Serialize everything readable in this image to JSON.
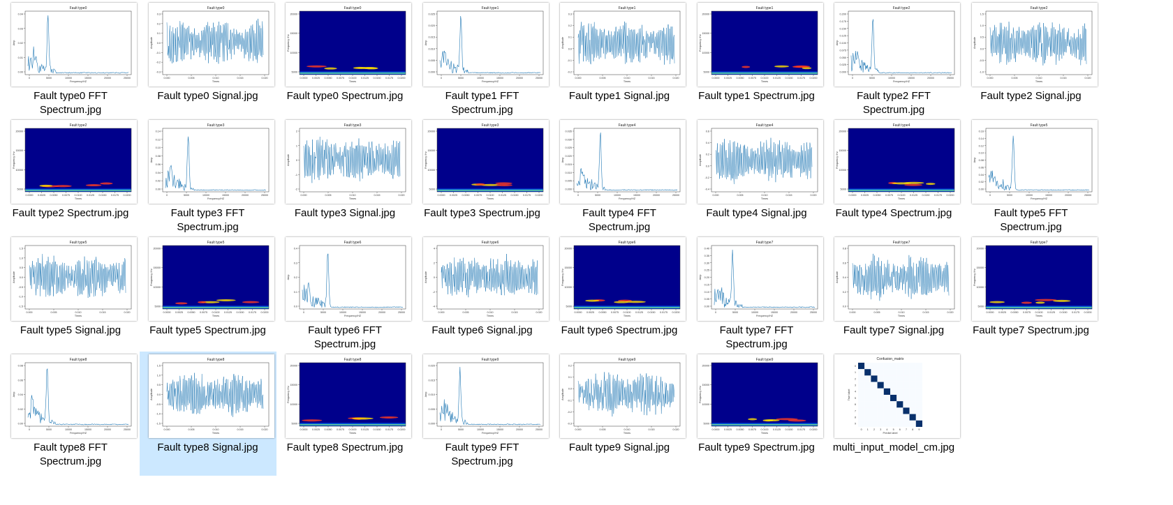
{
  "files": [
    {
      "name": "Fault type0 FFT Spectrum.jpg",
      "kind": "fft",
      "title": "Fault type0",
      "selected": false,
      "y_ticks": [
        "0.04",
        "0.03",
        "0.02",
        "0.01",
        "0.00"
      ],
      "x_ticks": [
        "0",
        "5000",
        "10000",
        "15000",
        "20000",
        "25000"
      ],
      "x_label": "Frequency/HZ",
      "y_label": "Amp"
    },
    {
      "name": "Fault type0 Signal.jpg",
      "kind": "signal",
      "title": "Fault type0",
      "selected": false,
      "y_ticks": [
        "0.3",
        "0.2",
        "0.1",
        "0.0",
        "-0.1",
        "-0.2",
        "-0.3"
      ],
      "x_ticks": [
        "0.000",
        "0.005",
        "0.010",
        "0.015",
        "0.020"
      ],
      "x_label": "Times",
      "y_label": "Amplitude"
    },
    {
      "name": "Fault type0 Spectrum.jpg",
      "kind": "spec",
      "title": "Fault type0",
      "selected": false,
      "y_ticks": [
        "20000",
        "15000",
        "10000",
        "5000"
      ],
      "x_ticks": [
        "0.0000",
        "0.0025",
        "0.0050",
        "0.0075",
        "0.0100",
        "0.0125",
        "0.0150",
        "0.0175",
        "0.0200"
      ],
      "x_label": "Times",
      "y_label": "Frequency /Hz"
    },
    {
      "name": "Fault type1 FFT Spectrum.jpg",
      "kind": "fft",
      "title": "Fault type1",
      "selected": false,
      "y_ticks": [
        "0.025",
        "0.020",
        "0.015",
        "0.010",
        "0.005",
        "0.000"
      ],
      "x_ticks": [
        "0",
        "5000",
        "10000",
        "15000",
        "20000",
        "25000"
      ],
      "x_label": "Frequency/HZ",
      "y_label": "Amp"
    },
    {
      "name": "Fault type1 Signal.jpg",
      "kind": "signal",
      "title": "Fault type1",
      "selected": false,
      "y_ticks": [
        "0.3",
        "0.2",
        "0.1",
        "0.0",
        "-0.1",
        "-0.2"
      ],
      "x_ticks": [
        "0.000",
        "0.005",
        "0.010",
        "0.015",
        "0.020"
      ],
      "x_label": "Times",
      "y_label": "Amplitude"
    },
    {
      "name": "Fault type1 Spectrum.jpg",
      "kind": "spec",
      "title": "Fault type1",
      "selected": false,
      "y_ticks": [
        "20000",
        "15000",
        "10000",
        "5000"
      ],
      "x_ticks": [
        "0.0000",
        "0.0025",
        "0.0050",
        "0.0075",
        "0.0100",
        "0.0125",
        "0.0150",
        "0.0175",
        "0.0200"
      ],
      "x_label": "Times",
      "y_label": "Frequency /Hz"
    },
    {
      "name": "Fault type2 FFT Spectrum.jpg",
      "kind": "fft",
      "title": "Fault type2",
      "selected": false,
      "y_ticks": [
        "0.200",
        "0.175",
        "0.150",
        "0.125",
        "0.100",
        "0.075",
        "0.050",
        "0.025",
        "0.000"
      ],
      "x_ticks": [
        "0",
        "5000",
        "10000",
        "15000",
        "20000",
        "25000"
      ],
      "x_label": "Frequency/HZ",
      "y_label": "Amp"
    },
    {
      "name": "Fault type2 Signal.jpg",
      "kind": "signal",
      "title": "Fault type2",
      "selected": false,
      "y_ticks": [
        "1.5",
        "1.0",
        "0.5",
        "0.0",
        "-0.5",
        "-1.0"
      ],
      "x_ticks": [
        "0.000",
        "0.005",
        "0.010",
        "0.015",
        "0.020"
      ],
      "x_label": "Times",
      "y_label": "Amplitude"
    },
    {
      "name": "Fault type2 Spectrum.jpg",
      "kind": "spec",
      "title": "Fault type2",
      "selected": false,
      "y_ticks": [
        "20000",
        "15000",
        "10000",
        "5000"
      ],
      "x_ticks": [
        "0.0000",
        "0.0025",
        "0.0050",
        "0.0075",
        "0.0100",
        "0.0125",
        "0.0150",
        "0.0175",
        "0.0200"
      ],
      "x_label": "Times",
      "y_label": "Frequency /Hz"
    },
    {
      "name": "Fault type3 FFT Spectrum.jpg",
      "kind": "fft",
      "title": "Fault type3",
      "selected": false,
      "y_ticks": [
        "0.14",
        "0.12",
        "0.10",
        "0.08",
        "0.06",
        "0.04",
        "0.02",
        "0.00"
      ],
      "x_ticks": [
        "0",
        "5000",
        "10000",
        "15000",
        "20000",
        "25000"
      ],
      "x_label": "Frequency/HZ",
      "y_label": "Amp"
    },
    {
      "name": "Fault type3 Signal.jpg",
      "kind": "signal",
      "title": "Fault type3",
      "selected": false,
      "y_ticks": [
        "2",
        "1",
        "0",
        "-1",
        "-2"
      ],
      "x_ticks": [
        "0.000",
        "0.005",
        "0.010",
        "0.015",
        "0.020"
      ],
      "x_label": "Times",
      "y_label": "Amplitude"
    },
    {
      "name": "Fault type3 Spectrum.jpg",
      "kind": "spec",
      "title": "Fault type3",
      "selected": false,
      "y_ticks": [
        "20000",
        "15000",
        "10000",
        "5000"
      ],
      "x_ticks": [
        "0.0000",
        "0.0025",
        "0.0050",
        "0.0075",
        "0.0100",
        "0.0125",
        "0.0150",
        "0.0175",
        "0.0200"
      ],
      "x_label": "Times",
      "y_label": "Frequency /Hz"
    },
    {
      "name": "Fault type4 FFT Spectrum.jpg",
      "kind": "fft",
      "title": "Fault type4",
      "selected": false,
      "y_ticks": [
        "0.035",
        "0.030",
        "0.025",
        "0.020",
        "0.015",
        "0.010",
        "0.005",
        "0.000"
      ],
      "x_ticks": [
        "0",
        "5000",
        "10000",
        "15000",
        "20000",
        "25000"
      ],
      "x_label": "Frequency/HZ",
      "y_label": "Amp"
    },
    {
      "name": "Fault type4 Signal.jpg",
      "kind": "signal",
      "title": "Fault type4",
      "selected": false,
      "y_ticks": [
        "0.6",
        "0.4",
        "0.2",
        "0.0",
        "-0.2",
        "-0.4"
      ],
      "x_ticks": [
        "0.000",
        "0.005",
        "0.010",
        "0.015",
        "0.020"
      ],
      "x_label": "Times",
      "y_label": "Amplitude"
    },
    {
      "name": "Fault type4 Spectrum.jpg",
      "kind": "spec",
      "title": "Fault type4",
      "selected": false,
      "y_ticks": [
        "20000",
        "15000",
        "10000",
        "5000"
      ],
      "x_ticks": [
        "0.0000",
        "0.0025",
        "0.0050",
        "0.0075",
        "0.0100",
        "0.0125",
        "0.0150",
        "0.0175",
        "0.0200"
      ],
      "x_label": "Times",
      "y_label": "Frequency /Hz"
    },
    {
      "name": "Fault type5 FFT Spectrum.jpg",
      "kind": "fft",
      "title": "Fault type5",
      "selected": false,
      "y_ticks": [
        "0.16",
        "0.14",
        "0.12",
        "0.10",
        "0.08",
        "0.06",
        "0.04",
        "0.02",
        "0.00"
      ],
      "x_ticks": [
        "0",
        "5000",
        "10000",
        "15000",
        "20000",
        "25000"
      ],
      "x_label": "Frequency/HZ",
      "y_label": "Amp"
    },
    {
      "name": "Fault type5 Signal.jpg",
      "kind": "signal",
      "title": "Fault type5",
      "selected": false,
      "y_ticks": [
        "1.5",
        "1.0",
        "0.5",
        "0.0",
        "-0.5",
        "-1.0",
        "-1.5"
      ],
      "x_ticks": [
        "0.000",
        "0.005",
        "0.010",
        "0.015",
        "0.020"
      ],
      "x_label": "Times",
      "y_label": "Amplitude"
    },
    {
      "name": "Fault type5 Spectrum.jpg",
      "kind": "spec",
      "title": "Fault type5",
      "selected": false,
      "y_ticks": [
        "20000",
        "15000",
        "10000",
        "5000"
      ],
      "x_ticks": [
        "0.0000",
        "0.0025",
        "0.0050",
        "0.0075",
        "0.0100",
        "0.0125",
        "0.0150",
        "0.0175",
        "0.0200"
      ],
      "x_label": "Times",
      "y_label": "Frequency /Hz"
    },
    {
      "name": "Fault type6 FFT Spectrum.jpg",
      "kind": "fft",
      "title": "Fault type6",
      "selected": false,
      "y_ticks": [
        "0.4",
        "0.3",
        "0.2",
        "0.1",
        "0.0"
      ],
      "x_ticks": [
        "0",
        "5000",
        "10000",
        "15000",
        "20000",
        "25000"
      ],
      "x_label": "Frequency/HZ",
      "y_label": "Amp"
    },
    {
      "name": "Fault type6 Signal.jpg",
      "kind": "signal",
      "title": "Fault type6",
      "selected": false,
      "y_ticks": [
        "4",
        "2",
        "0",
        "-2",
        "-4"
      ],
      "x_ticks": [
        "0.000",
        "0.005",
        "0.010",
        "0.015",
        "0.020"
      ],
      "x_label": "Times",
      "y_label": "Amplitude"
    },
    {
      "name": "Fault type6 Spectrum.jpg",
      "kind": "spec",
      "title": "Fault type6",
      "selected": false,
      "y_ticks": [
        "20000",
        "15000",
        "10000",
        "5000"
      ],
      "x_ticks": [
        "0.0000",
        "0.0025",
        "0.0050",
        "0.0075",
        "0.0100",
        "0.0125",
        "0.0150",
        "0.0175",
        "0.0200"
      ],
      "x_label": "Times",
      "y_label": "Frequency /Hz"
    },
    {
      "name": "Fault type7 FFT Spectrum.jpg",
      "kind": "fft",
      "title": "Fault type7",
      "selected": false,
      "y_ticks": [
        "0.40",
        "0.35",
        "0.30",
        "0.25",
        "0.20",
        "0.15",
        "0.10",
        "0.05",
        "0.00"
      ],
      "x_ticks": [
        "0",
        "5000",
        "10000",
        "15000",
        "20000",
        "25000"
      ],
      "x_label": "Frequency/HZ",
      "y_label": "Amp"
    },
    {
      "name": "Fault type7 Signal.jpg",
      "kind": "signal",
      "title": "Fault type7",
      "selected": false,
      "y_ticks": [
        "0.8",
        "0.6",
        "0.4",
        "0.2",
        "0.0"
      ],
      "x_ticks": [
        "0.000",
        "0.005",
        "0.010",
        "0.015",
        "0.020"
      ],
      "x_label": "Times",
      "y_label": "Amplitude"
    },
    {
      "name": "Fault type7 Spectrum.jpg",
      "kind": "spec",
      "title": "Fault type7",
      "selected": false,
      "y_ticks": [
        "20000",
        "15000",
        "10000",
        "5000"
      ],
      "x_ticks": [
        "0.0000",
        "0.0025",
        "0.0050",
        "0.0075",
        "0.0100",
        "0.0125",
        "0.0150",
        "0.0175",
        "0.0200"
      ],
      "x_label": "Times",
      "y_label": "Frequency /Hz"
    },
    {
      "name": "Fault type8 FFT Spectrum.jpg",
      "kind": "fft",
      "title": "Fault type8",
      "selected": false,
      "y_ticks": [
        "0.08",
        "0.06",
        "0.04",
        "0.02",
        "0.00"
      ],
      "x_ticks": [
        "0",
        "5000",
        "10000",
        "15000",
        "20000",
        "25000"
      ],
      "x_label": "Frequency/HZ",
      "y_label": "Amp"
    },
    {
      "name": "Fault type8 Signal.jpg",
      "kind": "signal",
      "title": "Fault type8",
      "selected": true,
      "y_ticks": [
        "1.5",
        "1.0",
        "0.5",
        "0.0",
        "-0.5",
        "-1.0",
        "-1.5"
      ],
      "x_ticks": [
        "0.000",
        "0.005",
        "0.010",
        "0.015",
        "0.020"
      ],
      "x_label": "Times",
      "y_label": "Amplitude"
    },
    {
      "name": "Fault type8 Spectrum.jpg",
      "kind": "spec",
      "title": "Fault type8",
      "selected": false,
      "y_ticks": [
        "20000",
        "15000",
        "10000",
        "5000"
      ],
      "x_ticks": [
        "0.0000",
        "0.0025",
        "0.0050",
        "0.0075",
        "0.0100",
        "0.0125",
        "0.0150",
        "0.0175",
        "0.0200"
      ],
      "x_label": "Times",
      "y_label": "Frequency /Hz"
    },
    {
      "name": "Fault type9 FFT Spectrum.jpg",
      "kind": "fft",
      "title": "Fault type9",
      "selected": false,
      "y_ticks": [
        "0.020",
        "0.015",
        "0.010",
        "0.005",
        "0.000"
      ],
      "x_ticks": [
        "0",
        "5000",
        "10000",
        "15000",
        "20000",
        "25000"
      ],
      "x_label": "Frequency/HZ",
      "y_label": "Amp"
    },
    {
      "name": "Fault type9 Signal.jpg",
      "kind": "signal",
      "title": "Fault type9",
      "selected": false,
      "y_ticks": [
        "0.2",
        "0.1",
        "0.0",
        "-0.1",
        "-0.2",
        "-0.3"
      ],
      "x_ticks": [
        "0.000",
        "0.005",
        "0.010",
        "0.015",
        "0.020"
      ],
      "x_label": "Times",
      "y_label": "Amplitude"
    },
    {
      "name": "Fault type9 Spectrum.jpg",
      "kind": "spec",
      "title": "Fault type9",
      "selected": false,
      "y_ticks": [
        "20000",
        "15000",
        "10000",
        "5000"
      ],
      "x_ticks": [
        "0.0000",
        "0.0025",
        "0.0050",
        "0.0075",
        "0.0100",
        "0.0125",
        "0.0150",
        "0.0175",
        "0.0200"
      ],
      "x_label": "Times",
      "y_label": "Frequency /Hz"
    },
    {
      "name": "multi_input_model_cm.jpg",
      "kind": "cm",
      "title": "Confusion_matrix",
      "selected": false,
      "y_ticks": [
        "0",
        "1",
        "2",
        "3",
        "4",
        "5",
        "6",
        "7",
        "8",
        "9"
      ],
      "x_ticks": [
        "0",
        "1",
        "2",
        "3",
        "4",
        "5",
        "6",
        "7",
        "8",
        "9"
      ],
      "x_label": "Predict label",
      "y_label": "True label"
    }
  ],
  "colors": {
    "line": "#1f77b4",
    "spectrogram_bg": "#00008b",
    "selection": "#cce8ff",
    "cm_diag": "#08306b"
  }
}
